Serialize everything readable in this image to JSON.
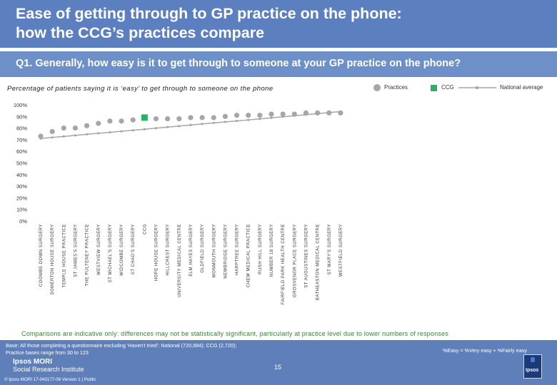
{
  "header": {
    "title_line1": "Ease of getting through to GP practice on the phone:",
    "title_line2": "how the CCG’s practices compare"
  },
  "question": "Q1. Generally, how easy is it to get through to someone at your GP practice on the phone?",
  "subtitle": "Percentage of patients saying it is ‘easy’ to get through to someone on the phone",
  "legend": {
    "practices": "Practices",
    "ccg": "CCG",
    "national": "National average"
  },
  "colors": {
    "practice": "#a6a6a6",
    "ccg": "#29b263",
    "national": "#a6a6a6",
    "header": "#5b7fbf",
    "footer": "#5f7fba"
  },
  "chart_data": {
    "type": "scatter",
    "title": "",
    "xlabel": "",
    "ylabel": "",
    "ylim": [
      0,
      100
    ],
    "y_ticks": [
      "0%",
      "10%",
      "20%",
      "30%",
      "40%",
      "50%",
      "60%",
      "70%",
      "80%",
      "90%",
      "100%"
    ],
    "categories": [
      "COOMBE DOWN SURGERY",
      "SOMERTON HOUSE SURGERY",
      "TEMPLE HOUSE PRACTICE",
      "ST JAMES'S SURGERY",
      "THE PULTENEY PRACTICE",
      "WESTVIEW SURGERY",
      "ST MICHAEL'S SURGERY",
      "WIDCOMBE SURGERY",
      "ST CHAD'S SURGERY",
      "CCG",
      "HOPE HOUSE SURGERY",
      "HILLCREST SURGERY",
      "UNIVERSITY MEDICAL CENTRE",
      "ELM HAYES SURGERY",
      "OLDFIELD SURGERY",
      "MONMOUTH SURGERY",
      "NEWBRIDGE SURGERY",
      "HARPTREE SURGERY",
      "CHEW MEDICAL PRACTICE",
      "RUSH HILL SURGERY",
      "NUMBER 18 SURGERY",
      "FAIRFIELD PARK HEALTH CENTRE",
      "GROSVENOR PLACE SURGERY",
      "ST AUGUSTINES SURGERY",
      "BATHEASTON MEDICAL CENTRE",
      "ST MARY'S SURGERY",
      "WESTFIELD SURGERY"
    ],
    "series": [
      {
        "name": "Practices",
        "values": [
          73,
          77,
          80,
          80,
          82,
          84,
          86,
          86,
          87,
          null,
          88,
          88,
          88,
          89,
          89,
          89,
          90,
          91,
          91,
          91,
          92,
          92,
          92,
          93,
          93,
          93,
          93
        ]
      },
      {
        "name": "CCG",
        "values": [
          null,
          null,
          null,
          null,
          null,
          null,
          null,
          null,
          null,
          89,
          null,
          null,
          null,
          null,
          null,
          null,
          null,
          null,
          null,
          null,
          null,
          null,
          null,
          null,
          null,
          null,
          null
        ]
      },
      {
        "name": "National average",
        "values": [
          71,
          71.9,
          72.8,
          73.7,
          74.6,
          75.5,
          76.3,
          77.2,
          78.1,
          79,
          79.9,
          80.8,
          81.7,
          82.6,
          83.5,
          84.4,
          85.3,
          86.1,
          87,
          87.9,
          88.8,
          89.7,
          90.6,
          91.5,
          92.4,
          93.3,
          94.2
        ]
      }
    ],
    "grid": false,
    "legend_position": "top-right"
  },
  "footer": {
    "note": "Comparisons are indicative only: differences may not be statistically significant, particularly at practice level due to lower numbers of responses",
    "base_line1": "Base: All those completing a questionnaire excluding ‘Haven’t tried’: National (720,884); CCG (2,720);",
    "base_line2": "Practice bases range from 30 to 123",
    "easy_def": "%Easy = %Very easy + %Fairly easy",
    "page": "15",
    "brand_line1": "Ipsos MORI",
    "brand_line2": "Social Research Institute",
    "copyright": "© Ipsos MORI      17-043177-06 Version 1 | Public",
    "logo_text": "Ipsos"
  }
}
